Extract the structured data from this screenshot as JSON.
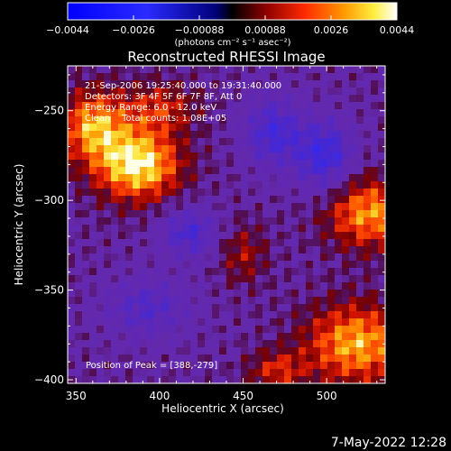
{
  "chart_data": {
    "type": "heatmap",
    "title": "Reconstructed RHESSI Image",
    "xlabel": "Heliocentric X (arcsec)",
    "ylabel": "Heliocentric Y (arcsec)",
    "xlim": [
      345,
      535
    ],
    "ylim": [
      -402,
      -225
    ],
    "x_ticks": [
      350,
      400,
      450,
      500
    ],
    "y_ticks": [
      -250,
      -300,
      -350,
      -400
    ],
    "colorbar": {
      "unit_label": "(photons cm⁻² s⁻¹ asec⁻²)",
      "range": [
        -0.0044,
        0.0044
      ],
      "ticks": [
        "−0.0044",
        "−0.0026",
        "−0.00088",
        "0.00088",
        "0.0026",
        "0.0044"
      ]
    },
    "annotations": [
      "21-Sep-2006 19:25:40.000 to 19:31:40.000",
      "Detectors: 3F 4F 5F 6F 7F 8F, Att 0",
      "Energy Range: 6.0 - 12.0 keV",
      "Clean    Total counts: 1.08E+05"
    ],
    "peak_label": "Position of Peak = [388,-279]",
    "sources": [
      {
        "x": 387,
        "y": -280,
        "amp": 1.0,
        "sx": 18,
        "sy": 14
      },
      {
        "x": 360,
        "y": -258,
        "amp": 0.75,
        "sx": 14,
        "sy": 14
      },
      {
        "x": 400,
        "y": -248,
        "amp": 0.45,
        "sx": 16,
        "sy": 10
      },
      {
        "x": 525,
        "y": -307,
        "amp": 0.75,
        "sx": 18,
        "sy": 14
      },
      {
        "x": 518,
        "y": -380,
        "amp": 0.8,
        "sx": 22,
        "sy": 16
      },
      {
        "x": 470,
        "y": -395,
        "amp": 0.45,
        "sx": 12,
        "sy": 8
      },
      {
        "x": 450,
        "y": -330,
        "amp": 0.35,
        "sx": 10,
        "sy": 12
      },
      {
        "x": 468,
        "y": -262,
        "amp": -0.6,
        "sx": 12,
        "sy": 14
      },
      {
        "x": 499,
        "y": -275,
        "amp": -0.7,
        "sx": 12,
        "sy": 14
      },
      {
        "x": 418,
        "y": -318,
        "amp": -0.55,
        "sx": 12,
        "sy": 10
      },
      {
        "x": 393,
        "y": -360,
        "amp": -0.45,
        "sx": 18,
        "sy": 12
      }
    ]
  },
  "footer": {
    "date": "7-May-2022 12:28"
  }
}
